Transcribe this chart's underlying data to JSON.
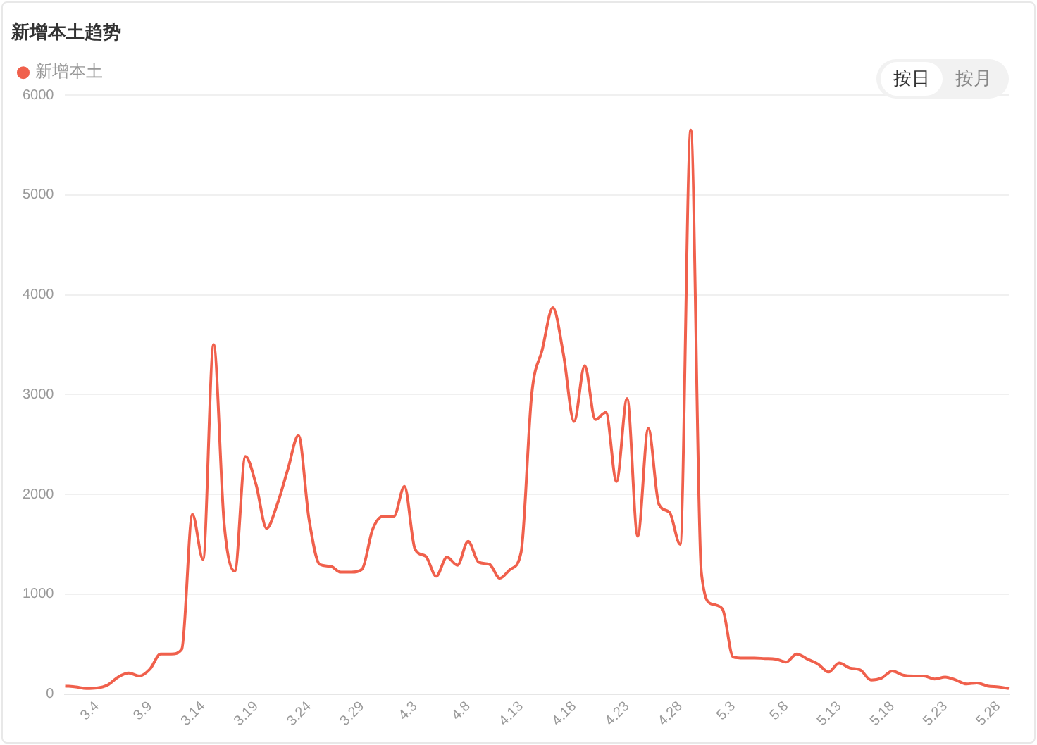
{
  "chart_data": {
    "type": "line",
    "title": "新增本土趋势",
    "categories": [
      null,
      null,
      null,
      "3.4",
      null,
      null,
      null,
      null,
      "3.9",
      null,
      null,
      null,
      null,
      "3.14",
      null,
      null,
      null,
      null,
      "3.19",
      null,
      null,
      null,
      null,
      "3.24",
      null,
      null,
      null,
      null,
      "3.29",
      null,
      null,
      null,
      null,
      "4.3",
      null,
      null,
      null,
      null,
      "4.8",
      null,
      null,
      null,
      null,
      "4.13",
      null,
      null,
      null,
      null,
      "4.18",
      null,
      null,
      null,
      null,
      "4.23",
      null,
      null,
      null,
      null,
      "4.28",
      null,
      null,
      null,
      null,
      "5.3",
      null,
      null,
      null,
      null,
      "5.8",
      null,
      null,
      null,
      null,
      "5.13",
      null,
      null,
      null,
      null,
      "5.18",
      null,
      null,
      null,
      null,
      "5.23",
      null,
      null,
      null,
      null,
      "5.28",
      null
    ],
    "series": [
      {
        "name": "新增本土",
        "color": "#f0604c",
        "values": [
          80,
          70,
          55,
          60,
          90,
          170,
          210,
          180,
          250,
          400,
          400,
          450,
          1800,
          1350,
          3500,
          1700,
          1230,
          2380,
          2100,
          1660,
          1900,
          2250,
          2590,
          1750,
          1300,
          1280,
          1220,
          1220,
          1250,
          1650,
          1780,
          1780,
          2080,
          1450,
          1380,
          1180,
          1370,
          1290,
          1530,
          1320,
          1300,
          1160,
          1250,
          1420,
          3000,
          3450,
          3870,
          3400,
          2730,
          3290,
          2750,
          2820,
          2130,
          2960,
          1580,
          2660,
          1900,
          1820,
          1500,
          5650,
          1220,
          900,
          850,
          370,
          360,
          360,
          355,
          350,
          320,
          400,
          350,
          300,
          220,
          310,
          260,
          240,
          140,
          160,
          230,
          190,
          180,
          180,
          150,
          170,
          140,
          100,
          110,
          80,
          70,
          55
        ]
      }
    ],
    "ylim": [
      0,
      6000
    ],
    "yticks": [
      0,
      1000,
      2000,
      3000,
      4000,
      5000,
      6000
    ],
    "grid": "y",
    "legend": "top left",
    "marker": "none",
    "line_style": "solid",
    "annotations": [
      "按日",
      "按月"
    ]
  }
}
